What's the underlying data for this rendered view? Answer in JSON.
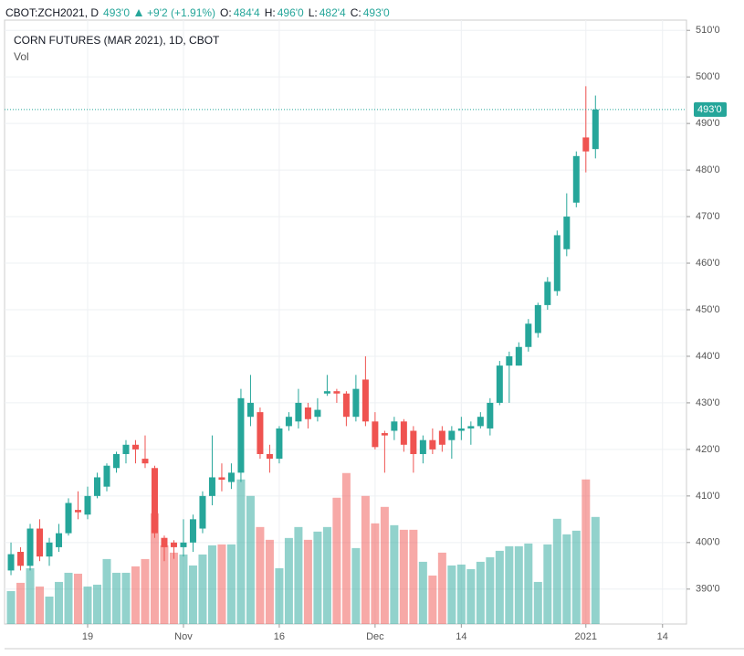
{
  "chart_data": {
    "type": "candlestick",
    "header": {
      "symbol": "CBOT:ZCH2021, D",
      "last": "493'0",
      "change": "+9'2 (+1.91%)",
      "fields": [
        {
          "label": "O:",
          "value": "484'4"
        },
        {
          "label": "H:",
          "value": "496'0"
        },
        {
          "label": "L:",
          "value": "482'4"
        },
        {
          "label": "C:",
          "value": "493'0"
        }
      ]
    },
    "title": "CORN FUTURES (MAR 2021), 1D, CBOT",
    "subtitle": "Vol",
    "up_color": "#26a69a",
    "down_color": "#ef5350",
    "open": [
      394,
      398,
      395,
      403,
      397,
      399,
      402,
      407,
      406,
      410,
      412,
      416,
      419,
      421,
      418,
      416,
      401,
      400,
      399,
      400,
      403,
      410,
      414,
      413,
      415,
      427,
      428,
      419,
      418,
      425,
      426,
      429,
      427,
      432,
      432.5,
      432,
      427,
      435,
      426,
      423.5,
      424,
      426,
      424,
      419,
      422,
      424,
      422,
      424,
      424.5,
      425,
      424.5,
      430,
      438,
      438,
      442,
      445,
      451,
      454,
      463,
      473,
      487,
      484.5
    ],
    "high": [
      400,
      399,
      404,
      405,
      401,
      404,
      409.5,
      411,
      412,
      415,
      417,
      419.5,
      422,
      422,
      423,
      416.5,
      401.5,
      400.5,
      405,
      406,
      411,
      423,
      417,
      417,
      433,
      436,
      429,
      421,
      425,
      428,
      433,
      430,
      431,
      436,
      433,
      432.5,
      436,
      440,
      428,
      424,
      427,
      426.5,
      425,
      423,
      424.5,
      425,
      425,
      427,
      426,
      428,
      431,
      439,
      441,
      443,
      448,
      451.5,
      457,
      467,
      475,
      484,
      498,
      496
    ],
    "low": [
      393,
      394,
      394,
      396,
      395,
      398,
      401.5,
      405,
      405,
      409.5,
      411,
      415,
      417,
      417,
      416,
      401,
      396,
      396.5,
      397,
      398,
      402,
      408,
      411,
      411.5,
      413,
      425,
      418,
      415,
      417,
      424,
      424.5,
      424.5,
      426,
      431.5,
      430,
      425,
      426,
      425,
      420,
      415,
      422,
      419.5,
      415,
      417,
      419,
      419.5,
      418,
      422,
      421,
      424.5,
      423,
      429.5,
      430,
      438,
      441,
      444,
      450,
      453,
      461.5,
      472,
      479.5,
      482.5
    ],
    "close": [
      397.5,
      395,
      403,
      397,
      400,
      402,
      408.5,
      406.5,
      410,
      414,
      416.5,
      419,
      421,
      420,
      417,
      402,
      399,
      399,
      400,
      405,
      410,
      414,
      413.5,
      415,
      431,
      430,
      419,
      418,
      424.5,
      427,
      430,
      426.5,
      428.5,
      432.5,
      432,
      427,
      433,
      426,
      420.5,
      423,
      426,
      421,
      419,
      422,
      420,
      421,
      424,
      424.5,
      425,
      427,
      430,
      438,
      440,
      442,
      447,
      451,
      456,
      466,
      470,
      483,
      484,
      493
    ],
    "volume": [
      36,
      45,
      61,
      41,
      30,
      46,
      56,
      55,
      41,
      43,
      71,
      56,
      56,
      63,
      71,
      121,
      86,
      78,
      76,
      64,
      76,
      86,
      87,
      87,
      158,
      140,
      106,
      92,
      61,
      94,
      106,
      92,
      101,
      106,
      138,
      165,
      83,
      140,
      110,
      128,
      108,
      103,
      103,
      68,
      53,
      78,
      64,
      65,
      60,
      68,
      73,
      80,
      85,
      85,
      88,
      46,
      87,
      115,
      98,
      102,
      158,
      117
    ],
    "last_price": {
      "value": 493,
      "label": "493'0"
    },
    "xlim": [
      -0.67,
      70.5
    ],
    "xticks": [
      {
        "value": 8,
        "label": "19"
      },
      {
        "value": 18,
        "label": "Nov"
      },
      {
        "value": 28,
        "label": "16"
      },
      {
        "value": 38,
        "label": "Dec"
      },
      {
        "value": 47,
        "label": "14"
      },
      {
        "value": 60,
        "label": "2021"
      },
      {
        "value": 68,
        "label": "14"
      }
    ],
    "ylim": [
      382.5,
      512.2
    ],
    "yticks": [
      {
        "value": 390,
        "label": "390'0"
      },
      {
        "value": 400,
        "label": "400'0"
      },
      {
        "value": 410,
        "label": "410'0"
      },
      {
        "value": 420,
        "label": "420'0"
      },
      {
        "value": 430,
        "label": "430'0"
      },
      {
        "value": 440,
        "label": "440'0"
      },
      {
        "value": 450,
        "label": "450'0"
      },
      {
        "value": 460,
        "label": "460'0"
      },
      {
        "value": 470,
        "label": "470'0"
      },
      {
        "value": 480,
        "label": "480'0"
      },
      {
        "value": 490,
        "label": "490'0"
      },
      {
        "value": 500,
        "label": "500'0"
      },
      {
        "value": 510,
        "label": "510'0"
      }
    ],
    "grid": true
  }
}
